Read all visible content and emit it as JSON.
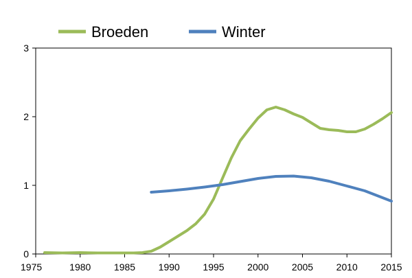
{
  "chart_data": {
    "type": "line",
    "title": "",
    "xlabel": "",
    "ylabel": "",
    "xlim": [
      1975,
      2015
    ],
    "ylim": [
      0,
      3
    ],
    "x_ticks": [
      1975,
      1980,
      1985,
      1990,
      1995,
      2000,
      2005,
      2010,
      2015
    ],
    "y_ticks": [
      0,
      1,
      2,
      3
    ],
    "grid": false,
    "legend_position": "top",
    "series": [
      {
        "name": "Broeden",
        "color": "#9BBB59",
        "x": [
          1976,
          1978,
          1980,
          1982,
          1984,
          1986,
          1987,
          1988,
          1989,
          1990,
          1991,
          1992,
          1993,
          1994,
          1995,
          1996,
          1997,
          1998,
          1999,
          2000,
          2001,
          2002,
          2003,
          2004,
          2005,
          2006,
          2007,
          2008,
          2009,
          2010,
          2011,
          2012,
          2013,
          2014,
          2015
        ],
        "y": [
          0.02,
          0.015,
          0.02,
          0.015,
          0.015,
          0.015,
          0.02,
          0.04,
          0.1,
          0.18,
          0.26,
          0.34,
          0.44,
          0.58,
          0.8,
          1.1,
          1.4,
          1.65,
          1.82,
          1.98,
          2.1,
          2.14,
          2.1,
          2.04,
          1.99,
          1.91,
          1.83,
          1.81,
          1.8,
          1.78,
          1.78,
          1.82,
          1.89,
          1.97,
          2.06
        ]
      },
      {
        "name": "Winter",
        "color": "#4F81BD",
        "x": [
          1988,
          1990,
          1992,
          1994,
          1996,
          1998,
          2000,
          2002,
          2004,
          2006,
          2008,
          2010,
          2012,
          2015
        ],
        "y": [
          0.9,
          0.92,
          0.945,
          0.975,
          1.01,
          1.055,
          1.1,
          1.13,
          1.135,
          1.11,
          1.06,
          0.99,
          0.92,
          0.77
        ]
      }
    ]
  }
}
